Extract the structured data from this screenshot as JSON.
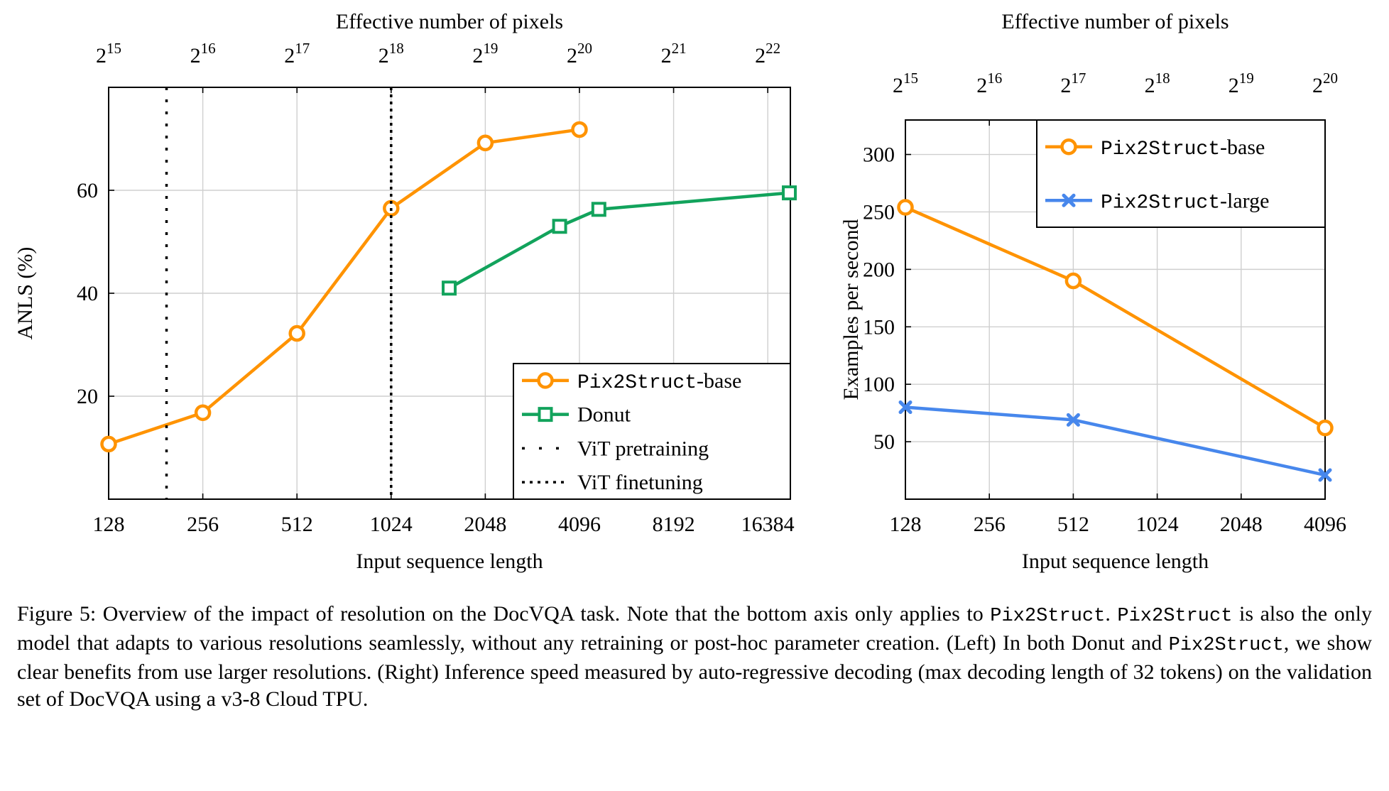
{
  "colors": {
    "orange": "#FF9300",
    "green": "#12A35C",
    "blue": "#4787EC",
    "grid": "#CFCFCF",
    "axis": "#000000",
    "background": "#FFFFFF"
  },
  "caption": {
    "segments": [
      {
        "text": "Figure 5:  Overview of the impact of resolution on the DocVQA task.  Note that the bottom axis only applies to ",
        "mono": false
      },
      {
        "text": "Pix2Struct",
        "mono": true
      },
      {
        "text": ". ",
        "mono": false
      },
      {
        "text": "Pix2Struct",
        "mono": true
      },
      {
        "text": " is also the only model that adapts to various resolutions seamlessly, without any retraining or post-hoc parameter creation. (Left) In both Donut and ",
        "mono": false
      },
      {
        "text": "Pix2Struct",
        "mono": true
      },
      {
        "text": ", we show clear benefits from use larger resolutions. (Right) Inference speed measured by auto-regressive decoding (max decoding length of 32 tokens) on the validation set of DocVQA using a v3-8 Cloud TPU.",
        "mono": false
      }
    ]
  },
  "chart_data": [
    {
      "id": "left",
      "type": "line",
      "title_top": "Effective number of pixels",
      "xlabel": "Input sequence length",
      "ylabel": "ANLS (%)",
      "xscale": "log2",
      "xlim": [
        128,
        19350
      ],
      "ylim": [
        0,
        80
      ],
      "grid": true,
      "xticks": [
        128,
        256,
        512,
        1024,
        2048,
        4096,
        8192,
        16384
      ],
      "xtick_labels": [
        "128",
        "256",
        "512",
        "1024",
        "2048",
        "4096",
        "8192",
        "16384"
      ],
      "top_exponents": [
        15,
        16,
        17,
        18,
        19,
        20,
        21,
        22
      ],
      "yticks": [
        20,
        40,
        60
      ],
      "series": [
        {
          "name": "Pix2Struct-base",
          "color": "orange",
          "marker": "circle",
          "x": [
            128,
            256,
            512,
            1024,
            2048,
            4096
          ],
          "y": [
            10.7,
            16.8,
            32.2,
            56.5,
            69.2,
            71.8
          ]
        },
        {
          "name": "Donut",
          "color": "green",
          "marker": "square",
          "x": [
            1570,
            3540,
            4725,
            19200
          ],
          "y": [
            41,
            53,
            56.3,
            59.5
          ]
        }
      ],
      "vlines": [
        {
          "name": "ViT pretraining",
          "x": 196,
          "style": "sparse"
        },
        {
          "name": "ViT finetuning",
          "x": 1024,
          "style": "dense"
        }
      ],
      "legend": {
        "position": "bottom-right",
        "entries": [
          {
            "sample": "line-circle",
            "color": "orange",
            "parts": [
              {
                "text": "Pix2Struct",
                "mono": true
              },
              {
                "text": "-base",
                "mono": false
              }
            ]
          },
          {
            "sample": "line-square",
            "color": "green",
            "parts": [
              {
                "text": "Donut",
                "mono": false
              }
            ]
          },
          {
            "sample": "dots-sparse",
            "color": "black",
            "parts": [
              {
                "text": "ViT pretraining",
                "mono": false
              }
            ]
          },
          {
            "sample": "dots-dense",
            "color": "black",
            "parts": [
              {
                "text": "ViT finetuning",
                "mono": false
              }
            ]
          }
        ]
      }
    },
    {
      "id": "right",
      "type": "line",
      "title_top": "Effective number of pixels",
      "xlabel": "Input sequence length",
      "ylabel": "Examples per second",
      "xscale": "log2",
      "xlim": [
        128,
        4096
      ],
      "ylim": [
        0,
        330
      ],
      "grid": true,
      "xticks": [
        128,
        256,
        512,
        1024,
        2048,
        4096
      ],
      "xtick_labels": [
        "128",
        "256",
        "512",
        "1024",
        "2048",
        "4096"
      ],
      "top_exponents": [
        15,
        16,
        17,
        18,
        19,
        20
      ],
      "yticks": [
        50,
        100,
        150,
        200,
        250,
        300
      ],
      "series": [
        {
          "name": "Pix2Struct-base",
          "color": "orange",
          "marker": "circle",
          "x": [
            128,
            512,
            4096
          ],
          "y": [
            254,
            190,
            62
          ]
        },
        {
          "name": "Pix2Struct-large",
          "color": "blue",
          "marker": "x",
          "x": [
            128,
            512,
            4096
          ],
          "y": [
            80,
            69,
            21
          ]
        }
      ],
      "vlines": [],
      "legend": {
        "position": "top-right",
        "entries": [
          {
            "sample": "line-circle",
            "color": "orange",
            "parts": [
              {
                "text": "Pix2Struct",
                "mono": true
              },
              {
                "text": "-base",
                "mono": false
              }
            ]
          },
          {
            "sample": "line-x",
            "color": "blue",
            "parts": [
              {
                "text": "Pix2Struct",
                "mono": true
              },
              {
                "text": "-large",
                "mono": false
              }
            ]
          }
        ]
      }
    }
  ]
}
